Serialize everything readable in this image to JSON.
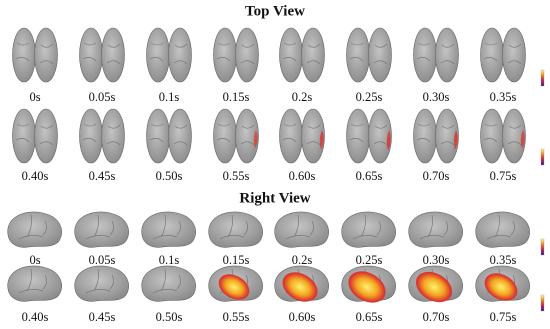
{
  "sections": [
    {
      "title": "Top View",
      "rows": [
        [
          "0s",
          "0.05s",
          "0.1s",
          "0.15s",
          "0.2s",
          "0.25s",
          "0.30s",
          "0.35s"
        ],
        [
          "0.40s",
          "0.45s",
          "0.50s",
          "0.55s",
          "0.60s",
          "0.65s",
          "0.70s",
          "0.75s"
        ]
      ]
    },
    {
      "title": "Right View",
      "rows": [
        [
          "0s",
          "0.05s",
          "0.1s",
          "0.15s",
          "0.2s",
          "0.25s",
          "0.30s",
          "0.35s"
        ],
        [
          "0.40s",
          "0.45s",
          "0.50s",
          "0.55s",
          "0.60s",
          "0.65s",
          "0.70s",
          "0.75s"
        ]
      ]
    }
  ]
}
